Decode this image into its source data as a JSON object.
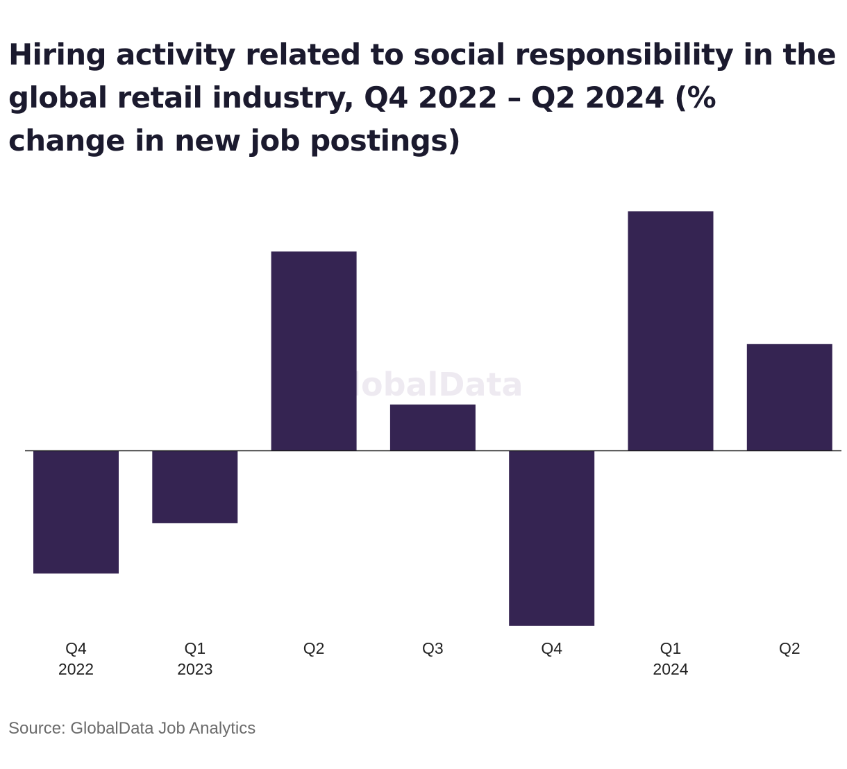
{
  "title": "Hiring activity related to social responsibility in the global retail industry, Q4 2022 – Q2 2024 (% change in new job postings)",
  "source": "Source: GlobalData Job Analytics",
  "watermark": "GlobalData",
  "colors": {
    "bar": "#352452",
    "axis": "#1a1a1a",
    "watermark": "#eeeaf1",
    "tick_text": "#222222"
  },
  "chart_data": {
    "type": "bar",
    "categories": [
      {
        "label": "Q4",
        "year": "2022"
      },
      {
        "label": "Q1",
        "year": "2023"
      },
      {
        "label": "Q2",
        "year": ""
      },
      {
        "label": "Q3",
        "year": ""
      },
      {
        "label": "Q4",
        "year": ""
      },
      {
        "label": "Q1",
        "year": "2024"
      },
      {
        "label": "Q2",
        "year": ""
      }
    ],
    "values": [
      -6.1,
      -3.6,
      9.9,
      2.3,
      -8.7,
      11.9,
      5.3
    ],
    "ylim": [
      -9,
      13
    ],
    "xlabel": "",
    "ylabel": "",
    "grid": false,
    "legend": "none"
  }
}
